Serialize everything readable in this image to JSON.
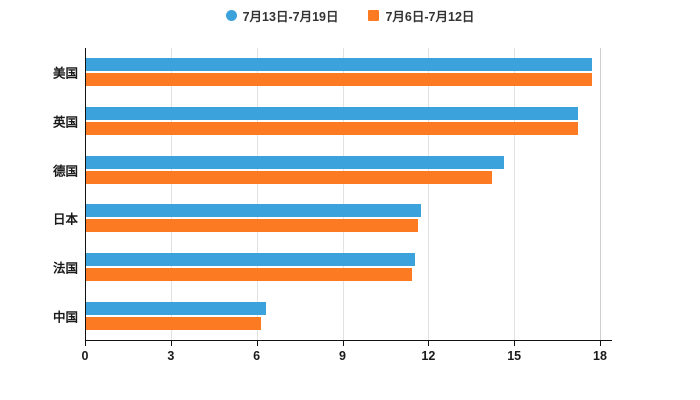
{
  "legend": [
    {
      "label": "7月13日-7月19日",
      "color": "#3BA2DB",
      "shape": "circle"
    },
    {
      "label": "7月6日-7月12日",
      "color": "#FC7B22",
      "shape": "square"
    }
  ],
  "chart_data": {
    "type": "bar",
    "orientation": "horizontal",
    "title": "",
    "xlabel": "",
    "ylabel": "",
    "categories": [
      "美国",
      "英国",
      "德国",
      "日本",
      "法国",
      "中国"
    ],
    "series": [
      {
        "name": "7月13日-7月19日",
        "color": "#3BA2DB",
        "values": [
          17.7,
          17.2,
          14.6,
          11.7,
          11.5,
          6.3
        ]
      },
      {
        "name": "7月6日-7月12日",
        "color": "#FC7B22",
        "values": [
          17.7,
          17.2,
          14.2,
          11.6,
          11.4,
          6.1
        ]
      }
    ],
    "xlim": [
      0,
      18
    ],
    "x_ticks": [
      0,
      3,
      6,
      9,
      12,
      15,
      18
    ],
    "grid": true,
    "legend_position": "top"
  }
}
